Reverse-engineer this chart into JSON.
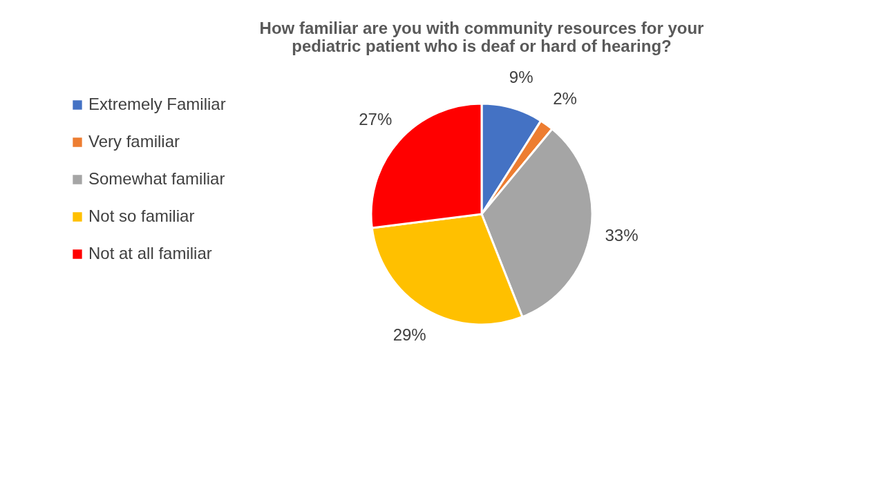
{
  "chart_data": {
    "type": "pie",
    "title": "How familiar are you  with community resources for your pediatric patient who is deaf or hard of hearing?",
    "categories": [
      "Extremely Familiar",
      "Very familiar",
      "Somewhat familiar",
      "Not so familiar",
      "Not at all familiar"
    ],
    "values": [
      9,
      2,
      33,
      29,
      27
    ],
    "colors": [
      "#4472c4",
      "#ed7d31",
      "#a5a5a5",
      "#ffc000",
      "#ff0000"
    ],
    "value_labels": [
      "9%",
      "2%",
      "33%",
      "29%",
      "27%"
    ],
    "legend": "left"
  }
}
